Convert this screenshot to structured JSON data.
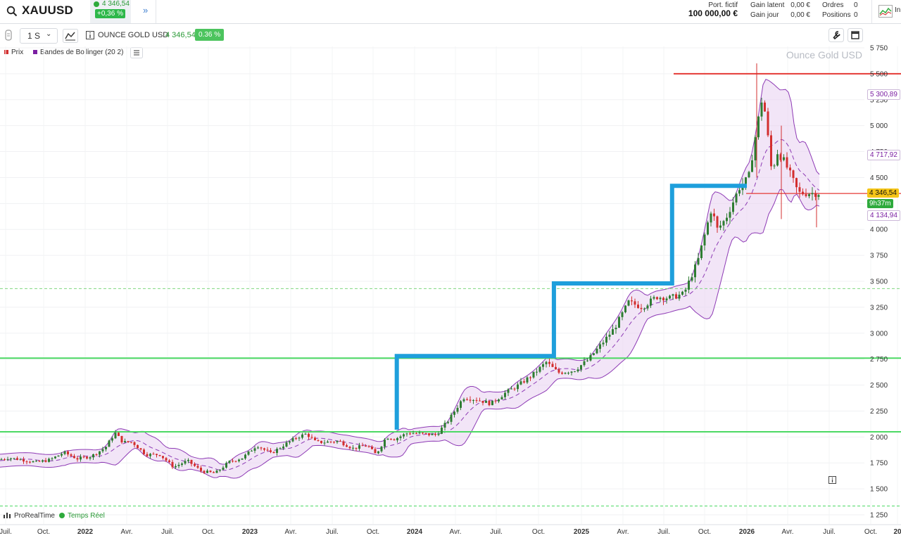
{
  "header": {
    "symbol": "XAUUSD",
    "price": "4 346,54",
    "change": "+0,36 %",
    "portfolio_label": "Port. fictif",
    "portfolio_value": "100 000,00 €",
    "gain_latent_label": "Gain latent",
    "gain_latent_value": "0,00 €",
    "gain_jour_label": "Gain jour",
    "gain_jour_value": "0,00 €",
    "orders_label": "Ordres",
    "orders_value": "0",
    "positions_label": "Positions",
    "positions_value": "0",
    "right_cut_text": "In"
  },
  "toolbar": {
    "timeframe": "1 S",
    "instrument_name": "OUNCE GOLD USD",
    "instrument_price": "4 346,54",
    "instrument_change": "0.36 %"
  },
  "legend": {
    "price_label": "Prix",
    "bollinger_label": "Bandes de Bollinger (20 2)",
    "price_color": "#d32f2f",
    "bollinger_color": "#7b1fa2"
  },
  "chart_data": {
    "type": "candlestick",
    "title": "Ounce Gold USD",
    "yticks": [
      "5 750",
      "5 500",
      "5 250",
      "5 000",
      "4 750",
      "4 500",
      "4 250",
      "4 000",
      "3 750",
      "3 500",
      "3 250",
      "3 000",
      "2 750",
      "2 500",
      "2 250",
      "2 000",
      "1 750",
      "1 500",
      "1 250"
    ],
    "ytick_values": [
      5750,
      5500,
      5250,
      5000,
      4750,
      4500,
      4250,
      4000,
      3750,
      3500,
      3250,
      3000,
      2750,
      2500,
      2250,
      2000,
      1750,
      1500,
      1250
    ],
    "xticks": [
      "Juil.",
      "Oct.",
      "2022",
      "Avr.",
      "Juil.",
      "Oct.",
      "2023",
      "Avr.",
      "Juil.",
      "Oct.",
      "2024",
      "Avr.",
      "Juil.",
      "Oct.",
      "2025",
      "Avr.",
      "Juil.",
      "Oct.",
      "2026",
      "Avr.",
      "Juil.",
      "Oct.",
      "20"
    ],
    "xtick_bold": [
      false,
      false,
      true,
      false,
      false,
      false,
      true,
      false,
      false,
      false,
      true,
      false,
      false,
      false,
      true,
      false,
      false,
      false,
      true,
      false,
      false,
      false,
      true
    ],
    "ylim": [
      1250,
      5750
    ],
    "last_price": "4 346,54",
    "last_price_value": 4346.54,
    "bb_upper_label": "5 300,89",
    "bb_upper_value": 5300.89,
    "bb_mid_label": "4 717,92",
    "bb_mid_value": 4717.92,
    "bb_lower_label": "4 134,94",
    "bb_lower_value": 4134.94,
    "countdown": "9h37m",
    "horizontal_levels": [
      {
        "value": 5500,
        "color": "#e53935"
      },
      {
        "value": 2760,
        "color": "#4cd964"
      },
      {
        "value": 2050,
        "color": "#4cd964"
      },
      {
        "value": 3430,
        "color": "#7fd67f",
        "dashed": true
      },
      {
        "value": 1335,
        "color": "#4cd964",
        "dashed": true
      }
    ],
    "step_line": [
      {
        "date": "2023-11-20",
        "value": 2070
      },
      {
        "date": "2023-11-20",
        "value": 2780
      },
      {
        "date": "2024-11-01",
        "value": 2780
      },
      {
        "date": "2024-11-01",
        "value": 3480
      },
      {
        "date": "2025-07-20",
        "value": 3480
      },
      {
        "date": "2025-07-20",
        "value": 4420
      },
      {
        "date": "2026-01-01",
        "value": 4420
      }
    ],
    "weekly_close": [
      {
        "date": "2021-06-15",
        "value": 1770
      },
      {
        "date": "2021-07-15",
        "value": 1800
      },
      {
        "date": "2021-08-15",
        "value": 1780
      },
      {
        "date": "2021-09-15",
        "value": 1755
      },
      {
        "date": "2021-10-15",
        "value": 1780
      },
      {
        "date": "2021-11-15",
        "value": 1850
      },
      {
        "date": "2021-12-15",
        "value": 1790
      },
      {
        "date": "2022-01-15",
        "value": 1815
      },
      {
        "date": "2022-02-15",
        "value": 1900
      },
      {
        "date": "2022-03-08",
        "value": 2040
      },
      {
        "date": "2022-03-25",
        "value": 1950
      },
      {
        "date": "2022-04-15",
        "value": 1950
      },
      {
        "date": "2022-05-15",
        "value": 1830
      },
      {
        "date": "2022-06-15",
        "value": 1830
      },
      {
        "date": "2022-07-15",
        "value": 1710
      },
      {
        "date": "2022-08-15",
        "value": 1770
      },
      {
        "date": "2022-09-15",
        "value": 1670
      },
      {
        "date": "2022-10-15",
        "value": 1650
      },
      {
        "date": "2022-11-15",
        "value": 1760
      },
      {
        "date": "2022-12-15",
        "value": 1800
      },
      {
        "date": "2023-01-15",
        "value": 1920
      },
      {
        "date": "2023-02-15",
        "value": 1840
      },
      {
        "date": "2023-03-15",
        "value": 1920
      },
      {
        "date": "2023-04-15",
        "value": 2000
      },
      {
        "date": "2023-05-05",
        "value": 2030
      },
      {
        "date": "2023-05-25",
        "value": 1950
      },
      {
        "date": "2023-06-15",
        "value": 1950
      },
      {
        "date": "2023-07-15",
        "value": 1960
      },
      {
        "date": "2023-08-15",
        "value": 1890
      },
      {
        "date": "2023-09-15",
        "value": 1920
      },
      {
        "date": "2023-10-05",
        "value": 1830
      },
      {
        "date": "2023-10-28",
        "value": 2000
      },
      {
        "date": "2023-11-15",
        "value": 1980
      },
      {
        "date": "2023-12-15",
        "value": 2040
      },
      {
        "date": "2024-01-15",
        "value": 2030
      },
      {
        "date": "2024-02-15",
        "value": 2020
      },
      {
        "date": "2024-03-15",
        "value": 2170
      },
      {
        "date": "2024-04-15",
        "value": 2380
      },
      {
        "date": "2024-05-15",
        "value": 2360
      },
      {
        "date": "2024-06-15",
        "value": 2320
      },
      {
        "date": "2024-07-15",
        "value": 2420
      },
      {
        "date": "2024-08-15",
        "value": 2500
      },
      {
        "date": "2024-09-15",
        "value": 2600
      },
      {
        "date": "2024-10-15",
        "value": 2720
      },
      {
        "date": "2024-11-10",
        "value": 2620
      },
      {
        "date": "2024-12-15",
        "value": 2640
      },
      {
        "date": "2025-01-15",
        "value": 2740
      },
      {
        "date": "2025-02-15",
        "value": 2900
      },
      {
        "date": "2025-03-15",
        "value": 3050
      },
      {
        "date": "2025-04-15",
        "value": 3300
      },
      {
        "date": "2025-05-15",
        "value": 3250
      },
      {
        "date": "2025-06-15",
        "value": 3350
      },
      {
        "date": "2025-07-15",
        "value": 3340
      },
      {
        "date": "2025-08-15",
        "value": 3380
      },
      {
        "date": "2025-09-15",
        "value": 3700
      },
      {
        "date": "2025-10-15",
        "value": 4200
      },
      {
        "date": "2025-10-28",
        "value": 4000
      },
      {
        "date": "2025-11-15",
        "value": 4100
      },
      {
        "date": "2025-12-15",
        "value": 4400
      },
      {
        "date": "2026-01-05",
        "value": 4500
      },
      {
        "date": "2026-01-20",
        "value": 4900
      },
      {
        "date": "2026-02-05",
        "value": 5300
      },
      {
        "date": "2026-02-15",
        "value": 4950
      },
      {
        "date": "2026-02-25",
        "value": 4550
      },
      {
        "date": "2026-03-10",
        "value": 4750
      },
      {
        "date": "2026-03-25",
        "value": 4650
      },
      {
        "date": "2026-04-10",
        "value": 4500
      },
      {
        "date": "2026-04-25",
        "value": 4350
      }
    ],
    "xlabel": "",
    "ylabel": ""
  },
  "footer": {
    "brand": "ProRealTime",
    "realtime": "Temps Réel"
  }
}
